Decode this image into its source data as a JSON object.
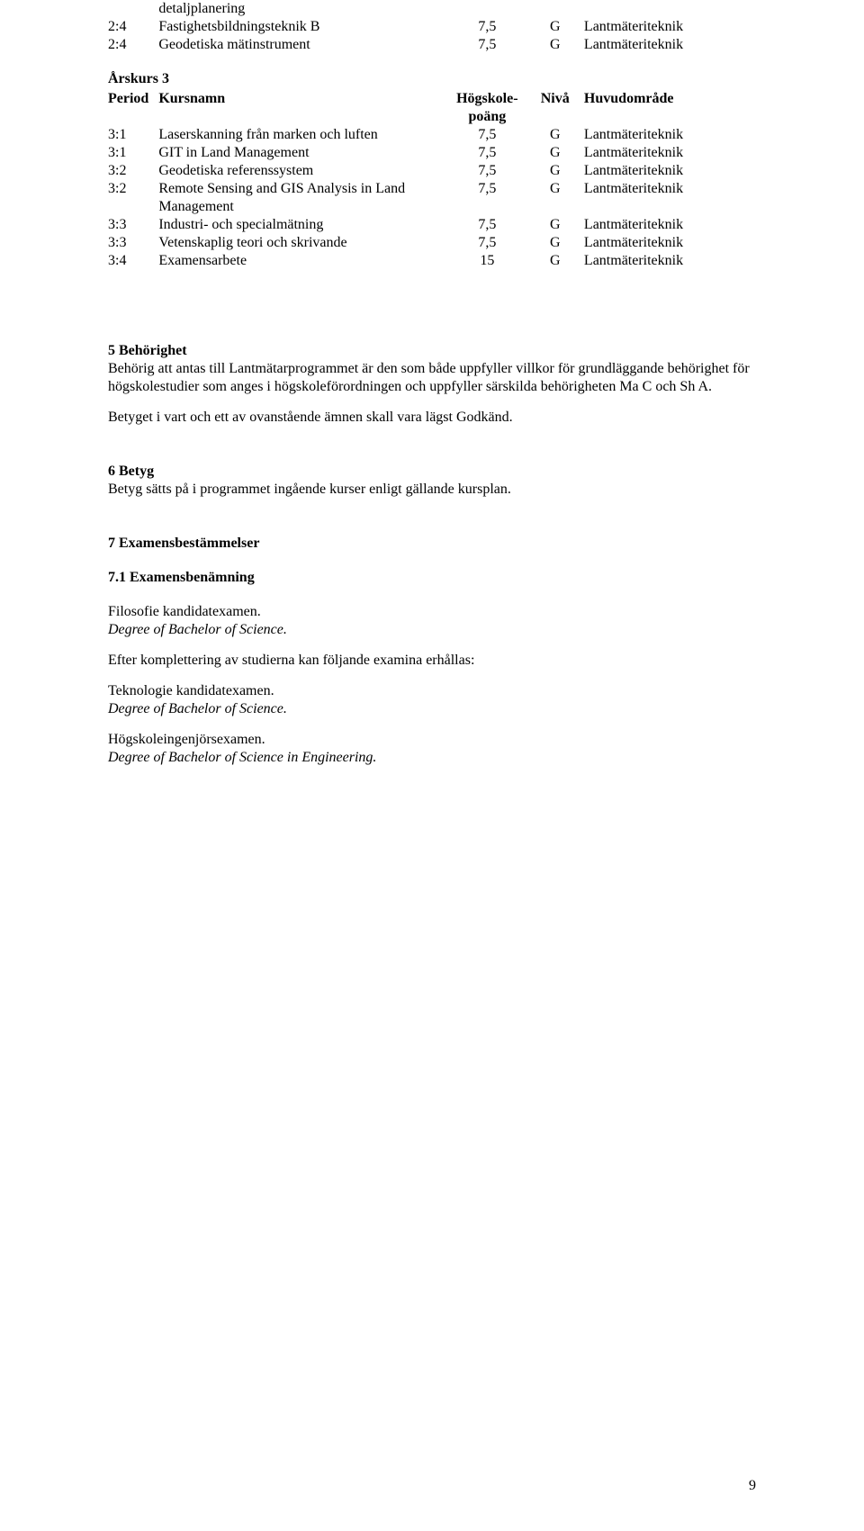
{
  "pageNumber": "9",
  "top": {
    "rows": [
      {
        "period": "",
        "course": "detaljplanering",
        "hp": "",
        "niva": "",
        "huvud": ""
      },
      {
        "period": "2:4",
        "course": "Fastighetsbildningsteknik B",
        "hp": "7,5",
        "niva": "G",
        "huvud": "Lantmäteriteknik"
      },
      {
        "period": "2:4",
        "course": "Geodetiska mätinstrument",
        "hp": "7,5",
        "niva": "G",
        "huvud": "Lantmäteriteknik"
      }
    ]
  },
  "year3": {
    "heading": "Årskurs 3",
    "header": {
      "period": "Period",
      "course": "Kursnamn",
      "hp1": "Högskole-",
      "hp2": "poäng",
      "niva": "Nivå",
      "huvud": "Huvudområde"
    },
    "rows": [
      {
        "period": "3:1",
        "course": "Laserskanning från marken och luften",
        "hp": "7,5",
        "niva": "G",
        "huvud": "Lantmäteriteknik"
      },
      {
        "period": "3:1",
        "course": "GIT in Land Management",
        "hp": "7,5",
        "niva": "G",
        "huvud": "Lantmäteriteknik"
      },
      {
        "period": "3:2",
        "course": "Geodetiska referenssystem",
        "hp": "7,5",
        "niva": "G",
        "huvud": "Lantmäteriteknik"
      },
      {
        "period": "3:2",
        "course": "Remote Sensing and GIS Analysis in Land Management",
        "hp": "7,5",
        "niva": "G",
        "huvud": "Lantmäteriteknik"
      },
      {
        "period": "3:3",
        "course": "Industri- och specialmätning",
        "hp": "7,5",
        "niva": "G",
        "huvud": "Lantmäteriteknik"
      },
      {
        "period": "3:3",
        "course": "Vetenskaplig teori och skrivande",
        "hp": "7,5",
        "niva": "G",
        "huvud": "Lantmäteriteknik"
      },
      {
        "period": "3:4",
        "course": "Examensarbete",
        "hp": "15",
        "niva": "G",
        "huvud": "Lantmäteriteknik"
      }
    ]
  },
  "s5": {
    "heading": "5 Behörighet",
    "para1": "Behörig att antas till Lantmätarprogrammet är den som både uppfyller villkor för grundläggande behörighet för högskolestudier som anges i högskoleförordningen och uppfyller särskilda behörigheten Ma C och Sh A.",
    "para2": "Betyget i vart och ett av ovanstående ämnen skall vara lägst Godkänd."
  },
  "s6": {
    "heading": "6 Betyg",
    "para": "Betyg sätts på i programmet ingående kurser enligt gällande kursplan."
  },
  "s7": {
    "heading": "7 Examensbestämmelser",
    "sub1": "7.1 Examensbenämning",
    "line1a": "Filosofie kandidatexamen.",
    "line1b": "Degree of Bachelor of Science.",
    "line2": "Efter komplettering av studierna kan följande examina erhållas:",
    "line3a": "Teknologie kandidatexamen.",
    "line3b": "Degree of Bachelor of Science.",
    "line4a": "Högskoleingenjörsexamen.",
    "line4b": "Degree of Bachelor of Science in Engineering."
  }
}
